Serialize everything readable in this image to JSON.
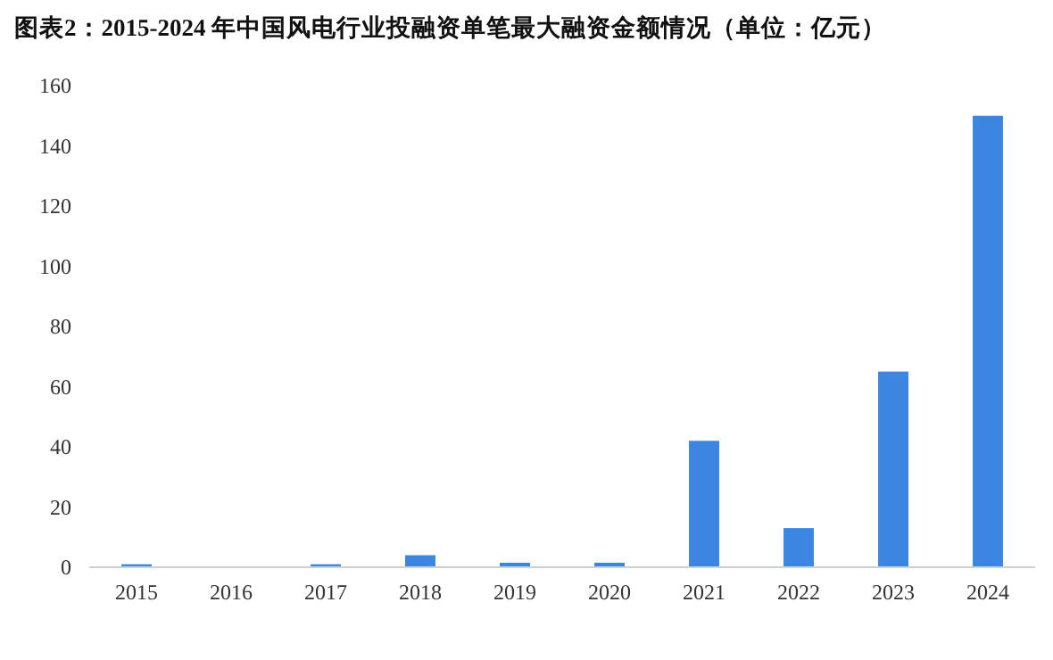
{
  "chart_data": {
    "type": "bar",
    "title": "图表2：2015-2024 年中国风电行业投融资单笔最大融资金额情况（单位：亿元）",
    "categories": [
      "2015",
      "2016",
      "2017",
      "2018",
      "2019",
      "2020",
      "2021",
      "2022",
      "2023",
      "2024"
    ],
    "values": [
      1,
      0,
      1,
      4,
      1.5,
      1.5,
      42,
      13,
      65,
      150
    ],
    "color": "#3c85e0",
    "ylim": [
      0,
      160
    ],
    "yticks": [
      0,
      20,
      40,
      60,
      80,
      100,
      120,
      140,
      160
    ],
    "grid": false,
    "legend": false
  }
}
